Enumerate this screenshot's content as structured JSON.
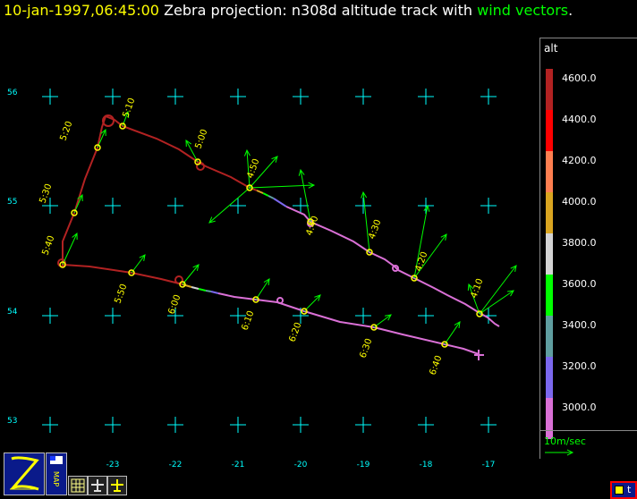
{
  "title": {
    "timestamp": "10-jan-1997,06:45:00",
    "text": "Zebra projection:  n308d altitude track with ",
    "wind_text": "wind vectors",
    "period": "."
  },
  "colors": {
    "timestamp": "#ffff00",
    "title_text": "#ffffff",
    "wind": "#00ff00",
    "grid": "#00ffff",
    "labels": "#ffff00"
  },
  "grid": {
    "lat_labels": [
      "56",
      "55",
      "54",
      "53"
    ],
    "lon_labels": [
      "-23",
      "-22",
      "-21",
      "-20",
      "-19",
      "-18",
      "-17"
    ]
  },
  "track_times": [
    "4:10",
    "4:20",
    "4:30",
    "4:40",
    "4:50",
    "5:00",
    "5:10",
    "5:20",
    "5:30",
    "5:40",
    "5:50",
    "6:00",
    "6:10",
    "6:20",
    "6:30",
    "6:40"
  ],
  "legend": {
    "title": "alt",
    "entries": [
      {
        "label": "4600.0",
        "color": "#b22222"
      },
      {
        "label": "4400.0",
        "color": "#ff0000"
      },
      {
        "label": "4200.0",
        "color": "#ff7f50"
      },
      {
        "label": "4000.0",
        "color": "#daa520"
      },
      {
        "label": "3800.0",
        "color": "#d3d3d3"
      },
      {
        "label": "3600.0",
        "color": "#00ff00"
      },
      {
        "label": "3400.0",
        "color": "#5f9ea0"
      },
      {
        "label": "3200.0",
        "color": "#7b68ee"
      },
      {
        "label": "3000.0",
        "color": "#da70d6"
      }
    ],
    "scale_label": "10m/sec"
  },
  "toolbar": {
    "map_label": "MAP"
  },
  "corner_button": {
    "label": "t"
  }
}
